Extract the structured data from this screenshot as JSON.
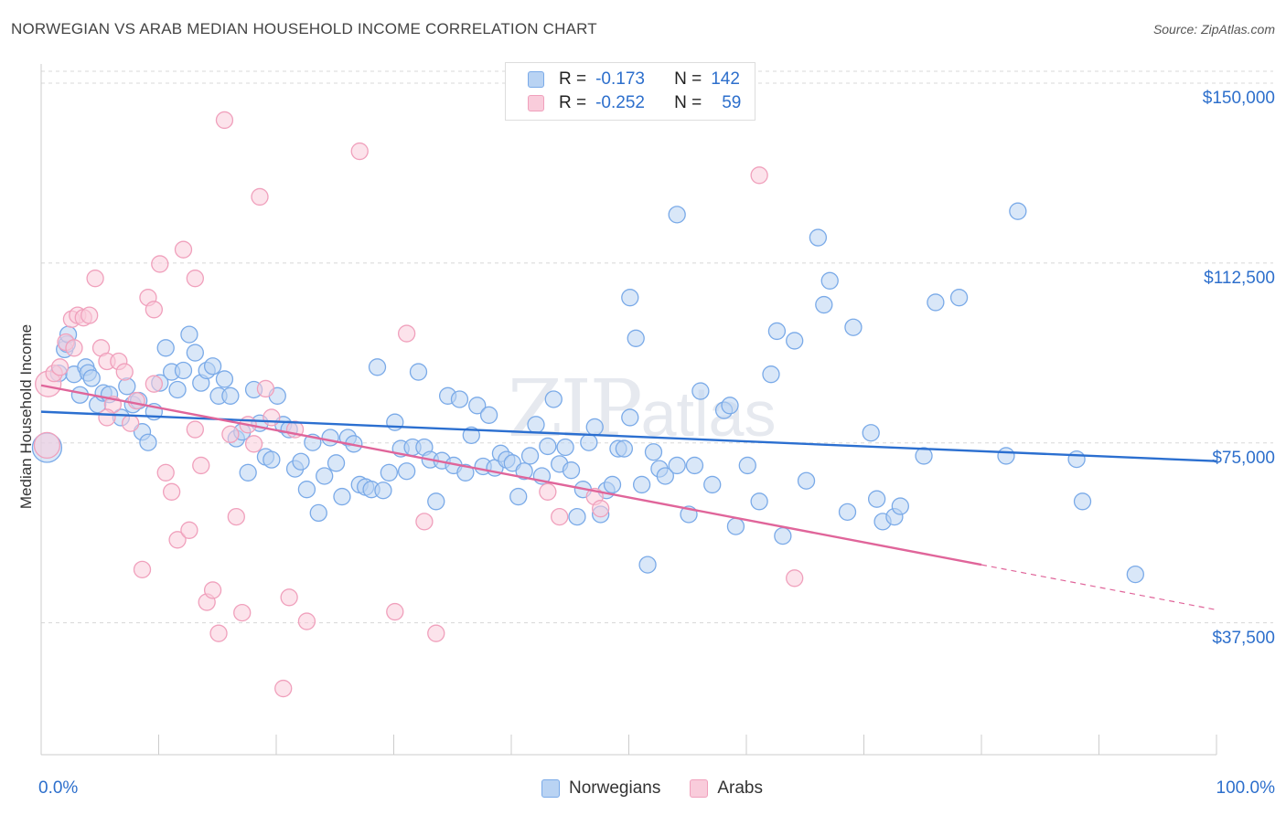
{
  "title": "NORWEGIAN VS ARAB MEDIAN HOUSEHOLD INCOME CORRELATION CHART",
  "source": "Source: ZipAtlas.com",
  "watermark": {
    "main": "ZIP",
    "sub": "atlas"
  },
  "colors": {
    "norwegians": "#7aaae8",
    "norwegians_fill": "#b9d3f3",
    "arabs": "#f0a0bc",
    "arabs_fill": "#f9ccdb",
    "blue_line": "#2b6fd0",
    "pink_line": "#e0659a",
    "grid": "#d8d8d8",
    "accent_text": "#2d6fcc"
  },
  "legend": {
    "rows": [
      {
        "r_label": "R =",
        "r_value": "-0.173",
        "n_label": "N =",
        "n_value": "142",
        "series": "norwegians"
      },
      {
        "r_label": "R =",
        "r_value": "-0.252",
        "n_label": "N =",
        "n_value": "59",
        "series": "arabs"
      }
    ]
  },
  "chart_data": {
    "type": "scatter",
    "title": "NORWEGIAN VS ARAB MEDIAN HOUSEHOLD INCOME CORRELATION CHART",
    "xlabel": "",
    "ylabel": "Median Household Income",
    "xlim": [
      0,
      100
    ],
    "ylim": [
      10000,
      154000
    ],
    "x_tick_labels": [
      "0.0%",
      "100.0%"
    ],
    "y_ticks": [
      37500,
      75000,
      112500,
      150000
    ],
    "y_tick_labels": [
      "$37,500",
      "$75,000",
      "$112,500",
      "$150,000"
    ],
    "grid": true,
    "legend_position": "bottom-center",
    "series": [
      {
        "name": "Norwegians",
        "r": -0.173,
        "n": 142,
        "trend": {
          "x": [
            0,
            100
          ],
          "y": [
            81500,
            71200
          ]
        },
        "points": [
          [
            0.5,
            74000
          ],
          [
            1.5,
            89500
          ],
          [
            2,
            94500
          ],
          [
            2.2,
            95600
          ],
          [
            2.3,
            97600
          ],
          [
            2.8,
            89300
          ],
          [
            3.3,
            85000
          ],
          [
            3.8,
            90800
          ],
          [
            4,
            89600
          ],
          [
            4.3,
            88500
          ],
          [
            4.8,
            83000
          ],
          [
            5.3,
            85400
          ],
          [
            5.8,
            85100
          ],
          [
            6.8,
            80300
          ],
          [
            7.3,
            86800
          ],
          [
            7.8,
            83000
          ],
          [
            8.3,
            83800
          ],
          [
            8.6,
            77300
          ],
          [
            9.1,
            75100
          ],
          [
            9.6,
            81500
          ],
          [
            10.1,
            87500
          ],
          [
            10.6,
            94800
          ],
          [
            11.1,
            89800
          ],
          [
            11.6,
            86100
          ],
          [
            12.1,
            90100
          ],
          [
            12.6,
            97600
          ],
          [
            13.1,
            93800
          ],
          [
            13.6,
            87500
          ],
          [
            14.1,
            90100
          ],
          [
            14.6,
            91000
          ],
          [
            15.1,
            84800
          ],
          [
            15.6,
            88300
          ],
          [
            16.1,
            84800
          ],
          [
            16.6,
            75900
          ],
          [
            17.1,
            77300
          ],
          [
            17.6,
            68800
          ],
          [
            18.1,
            86100
          ],
          [
            18.6,
            79100
          ],
          [
            19.1,
            72100
          ],
          [
            19.6,
            71500
          ],
          [
            20.1,
            84800
          ],
          [
            20.6,
            78800
          ],
          [
            21.1,
            77800
          ],
          [
            21.6,
            69600
          ],
          [
            22.1,
            71100
          ],
          [
            22.6,
            65300
          ],
          [
            23.1,
            75100
          ],
          [
            23.6,
            60400
          ],
          [
            24.1,
            68100
          ],
          [
            24.6,
            76100
          ],
          [
            25.1,
            70800
          ],
          [
            25.6,
            63800
          ],
          [
            26.1,
            76100
          ],
          [
            26.6,
            74800
          ],
          [
            27.1,
            66300
          ],
          [
            27.6,
            65800
          ],
          [
            28.1,
            65300
          ],
          [
            28.6,
            90800
          ],
          [
            29.1,
            65100
          ],
          [
            29.6,
            68800
          ],
          [
            30.1,
            79300
          ],
          [
            30.6,
            73800
          ],
          [
            31.1,
            69100
          ],
          [
            31.6,
            74100
          ],
          [
            32.1,
            89800
          ],
          [
            32.6,
            74100
          ],
          [
            33.1,
            71500
          ],
          [
            33.6,
            62800
          ],
          [
            34.1,
            71300
          ],
          [
            34.6,
            84800
          ],
          [
            35.1,
            70300
          ],
          [
            35.6,
            84100
          ],
          [
            36.1,
            68800
          ],
          [
            36.6,
            76600
          ],
          [
            37.1,
            82800
          ],
          [
            37.6,
            70100
          ],
          [
            38.1,
            80800
          ],
          [
            38.6,
            69800
          ],
          [
            39.1,
            72800
          ],
          [
            39.6,
            71500
          ],
          [
            40.1,
            70800
          ],
          [
            40.6,
            63800
          ],
          [
            41.1,
            69100
          ],
          [
            41.6,
            72300
          ],
          [
            42.1,
            78800
          ],
          [
            42.6,
            68100
          ],
          [
            43.1,
            74300
          ],
          [
            43.6,
            84100
          ],
          [
            44.1,
            70600
          ],
          [
            44.6,
            74100
          ],
          [
            45.1,
            69300
          ],
          [
            45.6,
            59600
          ],
          [
            46.1,
            65300
          ],
          [
            46.6,
            75100
          ],
          [
            47.1,
            78300
          ],
          [
            47.6,
            60100
          ],
          [
            48.1,
            65100
          ],
          [
            48.6,
            66300
          ],
          [
            49.1,
            73800
          ],
          [
            49.6,
            73800
          ],
          [
            50.1,
            80300
          ],
          [
            51.1,
            66300
          ],
          [
            51.6,
            49600
          ],
          [
            52.1,
            73100
          ],
          [
            52.6,
            69600
          ],
          [
            53.1,
            68100
          ],
          [
            54.1,
            70300
          ],
          [
            55.1,
            60100
          ],
          [
            55.6,
            70300
          ],
          [
            56.1,
            85800
          ],
          [
            57.1,
            66300
          ],
          [
            58.1,
            81800
          ],
          [
            58.6,
            82800
          ],
          [
            59.1,
            57600
          ],
          [
            60.1,
            70300
          ],
          [
            61.1,
            62800
          ],
          [
            62.1,
            89300
          ],
          [
            62.6,
            98300
          ],
          [
            63.1,
            55600
          ],
          [
            64.1,
            96300
          ],
          [
            65.1,
            67100
          ],
          [
            66.1,
            117800
          ],
          [
            66.6,
            103800
          ],
          [
            67.1,
            108800
          ],
          [
            68.6,
            60600
          ],
          [
            69.1,
            99100
          ],
          [
            70.6,
            77100
          ],
          [
            71.1,
            63300
          ],
          [
            71.6,
            58600
          ],
          [
            72.6,
            59600
          ],
          [
            73.1,
            61800
          ],
          [
            75.1,
            72300
          ],
          [
            76.1,
            104300
          ],
          [
            78.1,
            105300
          ],
          [
            82.1,
            72300
          ],
          [
            83.1,
            123300
          ],
          [
            88.1,
            71600
          ],
          [
            88.6,
            62800
          ],
          [
            93.1,
            47600
          ],
          [
            54.1,
            122600
          ],
          [
            50.1,
            105300
          ],
          [
            50.6,
            96800
          ]
        ]
      },
      {
        "name": "Arabs",
        "r": -0.252,
        "n": 59,
        "trend": {
          "x": [
            0,
            80
          ],
          "y": [
            87000,
            49600
          ],
          "dashed_extension": {
            "x": [
              80,
              100
            ],
            "y": [
              49600,
              40200
            ]
          }
        },
        "points": [
          [
            0.5,
            74500
          ],
          [
            0.6,
            87300
          ],
          [
            1.1,
            89500
          ],
          [
            1.6,
            90800
          ],
          [
            2.1,
            96000
          ],
          [
            2.6,
            100800
          ],
          [
            2.8,
            94800
          ],
          [
            3.1,
            101600
          ],
          [
            3.6,
            101100
          ],
          [
            4.1,
            101600
          ],
          [
            4.6,
            109300
          ],
          [
            5.1,
            94800
          ],
          [
            5.6,
            92000
          ],
          [
            6.1,
            83000
          ],
          [
            6.6,
            92000
          ],
          [
            7.1,
            89800
          ],
          [
            7.6,
            79100
          ],
          [
            8.1,
            83800
          ],
          [
            8.6,
            48600
          ],
          [
            9.1,
            105300
          ],
          [
            9.6,
            102800
          ],
          [
            10.1,
            112300
          ],
          [
            10.6,
            68800
          ],
          [
            11.1,
            64800
          ],
          [
            11.6,
            54800
          ],
          [
            12.1,
            115300
          ],
          [
            12.6,
            56800
          ],
          [
            13.1,
            109300
          ],
          [
            13.6,
            70300
          ],
          [
            14.1,
            41800
          ],
          [
            14.6,
            44300
          ],
          [
            15.1,
            35300
          ],
          [
            15.6,
            142300
          ],
          [
            16.1,
            76800
          ],
          [
            16.6,
            59600
          ],
          [
            17.1,
            39600
          ],
          [
            17.6,
            78800
          ],
          [
            18.1,
            74800
          ],
          [
            18.6,
            126300
          ],
          [
            19.1,
            86300
          ],
          [
            19.6,
            80300
          ],
          [
            20.6,
            23800
          ],
          [
            21.1,
            42800
          ],
          [
            21.6,
            77800
          ],
          [
            22.6,
            37800
          ],
          [
            27.1,
            135800
          ],
          [
            30.1,
            39800
          ],
          [
            31.1,
            97800
          ],
          [
            32.6,
            58600
          ],
          [
            33.6,
            35300
          ],
          [
            43.1,
            64800
          ],
          [
            44.1,
            59600
          ],
          [
            47.1,
            63800
          ],
          [
            47.6,
            61300
          ],
          [
            61.1,
            130800
          ],
          [
            64.1,
            46800
          ],
          [
            9.6,
            87300
          ],
          [
            13.1,
            77800
          ],
          [
            5.6,
            80300
          ]
        ]
      }
    ]
  },
  "bottom_legend": [
    {
      "label": "Norwegians",
      "series": "norwegians"
    },
    {
      "label": "Arabs",
      "series": "arabs"
    }
  ],
  "x_axis": {
    "left_label": "0.0%",
    "right_label": "100.0%"
  }
}
